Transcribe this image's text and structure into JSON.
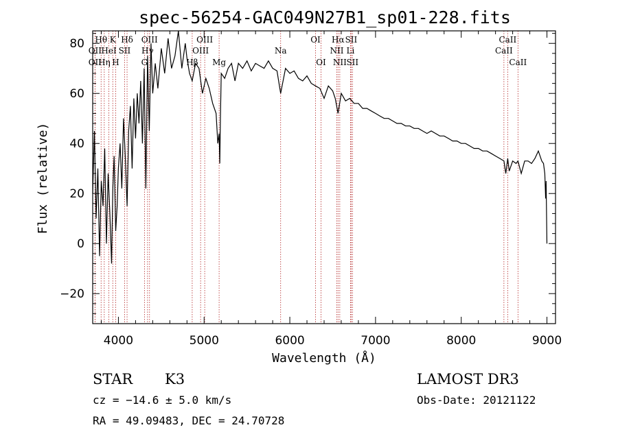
{
  "chart_data": {
    "type": "line",
    "title": "spec-56254-GAC049N27B1_sp01-228.fits",
    "xlabel": "Wavelength (Å)",
    "ylabel": "Flux (relative)",
    "xlim": [
      3700,
      9100
    ],
    "ylim": [
      -32,
      85
    ],
    "x_ticks": [
      {
        "value": 4000,
        "label": "4000"
      },
      {
        "value": 5000,
        "label": "5000"
      },
      {
        "value": 6000,
        "label": "6000"
      },
      {
        "value": 7000,
        "label": "7000"
      },
      {
        "value": 8000,
        "label": "8000"
      },
      {
        "value": 9000,
        "label": "9000"
      }
    ],
    "x_minor_step": 200,
    "y_ticks": [
      {
        "value": -20,
        "label": "−20"
      },
      {
        "value": 0,
        "label": "0"
      },
      {
        "value": 20,
        "label": "20"
      },
      {
        "value": 40,
        "label": "40"
      },
      {
        "value": 60,
        "label": "60"
      },
      {
        "value": 80,
        "label": "80"
      }
    ],
    "y_minor_step": 4,
    "series": [
      {
        "name": "flux",
        "color": "#000000",
        "x": [
          3700,
          3720,
          3740,
          3760,
          3780,
          3800,
          3820,
          3840,
          3860,
          3880,
          3900,
          3920,
          3935,
          3950,
          3968,
          3985,
          4000,
          4020,
          4040,
          4060,
          4080,
          4101,
          4120,
          4140,
          4160,
          4180,
          4200,
          4220,
          4240,
          4260,
          4280,
          4300,
          4320,
          4340,
          4360,
          4380,
          4400,
          4430,
          4460,
          4500,
          4540,
          4580,
          4620,
          4660,
          4700,
          4740,
          4780,
          4800,
          4830,
          4861,
          4900,
          4940,
          4980,
          5020,
          5060,
          5100,
          5140,
          5160,
          5175,
          5183,
          5190,
          5200,
          5240,
          5280,
          5320,
          5360,
          5400,
          5450,
          5500,
          5550,
          5600,
          5650,
          5700,
          5750,
          5800,
          5850,
          5893,
          5950,
          6000,
          6050,
          6100,
          6150,
          6200,
          6250,
          6300,
          6350,
          6400,
          6450,
          6500,
          6530,
          6563,
          6600,
          6650,
          6700,
          6750,
          6800,
          6850,
          6900,
          6950,
          7000,
          7050,
          7100,
          7150,
          7200,
          7250,
          7300,
          7350,
          7400,
          7450,
          7500,
          7550,
          7600,
          7650,
          7700,
          7750,
          7800,
          7850,
          7900,
          7950,
          8000,
          8050,
          8100,
          8150,
          8200,
          8250,
          8300,
          8350,
          8400,
          8450,
          8498,
          8520,
          8542,
          8560,
          8600,
          8640,
          8662,
          8700,
          8740,
          8780,
          8820,
          8860,
          8900,
          8940,
          8960,
          8975,
          8985,
          8990,
          9000
        ],
        "values": [
          20,
          45,
          10,
          30,
          -5,
          25,
          15,
          38,
          0,
          28,
          12,
          -8,
          22,
          35,
          5,
          15,
          30,
          40,
          22,
          50,
          35,
          15,
          45,
          55,
          30,
          58,
          42,
          60,
          48,
          65,
          40,
          70,
          22,
          75,
          45,
          80,
          60,
          72,
          62,
          78,
          68,
          82,
          70,
          75,
          85,
          70,
          80,
          74,
          68,
          65,
          72,
          70,
          60,
          66,
          62,
          56,
          52,
          40,
          44,
          32,
          50,
          68,
          66,
          70,
          72,
          65,
          72,
          70,
          73,
          69,
          72,
          71,
          70,
          73,
          70,
          69,
          60,
          70,
          68,
          69,
          66,
          65,
          67,
          64,
          63,
          62,
          58,
          63,
          61,
          58,
          52,
          60,
          57,
          58,
          56,
          56,
          54,
          54,
          53,
          52,
          51,
          50,
          50,
          49,
          48,
          48,
          47,
          47,
          46,
          46,
          45,
          44,
          45,
          44,
          43,
          43,
          42,
          41,
          41,
          40,
          40,
          39,
          38,
          38,
          37,
          37,
          36,
          35,
          34,
          33,
          28,
          34,
          29,
          33,
          32,
          33,
          28,
          33,
          33,
          32,
          34,
          37,
          33,
          32,
          28,
          18,
          25,
          0
        ]
      }
    ],
    "lines": [
      {
        "label": "Hθ",
        "wavelength": 3798,
        "row": 1
      },
      {
        "label": "OII",
        "wavelength": 3727,
        "row": 2
      },
      {
        "label": "OII",
        "wavelength": 3727,
        "row": 3
      },
      {
        "label": "K",
        "wavelength": 3934,
        "row": 1
      },
      {
        "label": "Hδ",
        "wavelength": 4101,
        "row": 1
      },
      {
        "label": "HeI",
        "wavelength": 3889,
        "row": 2
      },
      {
        "label": "SII",
        "wavelength": 4072,
        "row": 2
      },
      {
        "label": "Hη",
        "wavelength": 3835,
        "row": 3
      },
      {
        "label": "H",
        "wavelength": 3968,
        "row": 3
      },
      {
        "label": "OIII",
        "wavelength": 4363,
        "row": 1
      },
      {
        "label": "Hγ",
        "wavelength": 4340,
        "row": 2
      },
      {
        "label": "G",
        "wavelength": 4304,
        "row": 3
      },
      {
        "label": "OIII",
        "wavelength": 5007,
        "row": 1
      },
      {
        "label": "OIII",
        "wavelength": 4959,
        "row": 2
      },
      {
        "label": "Hβ",
        "wavelength": 4861,
        "row": 3
      },
      {
        "label": "Mg",
        "wavelength": 5175,
        "row": 3
      },
      {
        "label": "Na",
        "wavelength": 5893,
        "row": 2
      },
      {
        "label": "OI",
        "wavelength": 6300,
        "row": 1
      },
      {
        "label": "OI",
        "wavelength": 6364,
        "row": 3
      },
      {
        "label": "Hα",
        "wavelength": 6563,
        "row": 1
      },
      {
        "label": "SII",
        "wavelength": 6716,
        "row": 1
      },
      {
        "label": "NII",
        "wavelength": 6548,
        "row": 2
      },
      {
        "label": "Li",
        "wavelength": 6708,
        "row": 2
      },
      {
        "label": "NII",
        "wavelength": 6583,
        "row": 3
      },
      {
        "label": "SII",
        "wavelength": 6731,
        "row": 3
      },
      {
        "label": "CaII",
        "wavelength": 8542,
        "row": 1
      },
      {
        "label": "CaII",
        "wavelength": 8498,
        "row": 2
      },
      {
        "label": "CaII",
        "wavelength": 8662,
        "row": 3
      }
    ]
  },
  "info": {
    "class": "STAR",
    "subclass": "K3",
    "survey": "LAMOST DR3",
    "cz": "cz = −14.6 ± 5.0 km/s",
    "obs_date": "Obs-Date: 20121122",
    "coords": "RA =  49.09483, DEC =  24.70728"
  },
  "colors": {
    "spectrum": "#000000",
    "line_marker": "#b22222",
    "axes": "#000000",
    "background": "#ffffff"
  }
}
